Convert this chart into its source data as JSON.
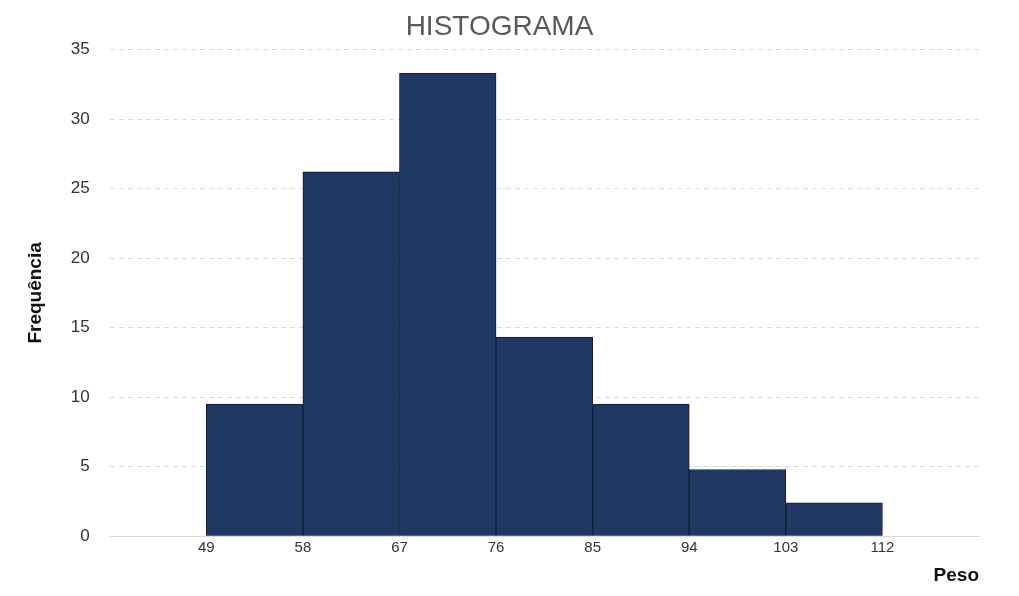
{
  "chart_data": {
    "type": "histogram",
    "title": "HISTOGRAMA",
    "xlabel": "Peso",
    "ylabel": "Frequência",
    "bins": [
      49,
      58,
      67,
      76,
      85,
      94,
      103,
      112
    ],
    "values": [
      9.5,
      26.2,
      33.3,
      14.3,
      9.5,
      4.8,
      2.4
    ],
    "color": "#1f3864",
    "xlim": [
      40,
      121
    ],
    "xticks": [
      49,
      58,
      67,
      76,
      85,
      94,
      103,
      112
    ],
    "ylim": [
      0,
      35
    ],
    "yticks": [
      0,
      5,
      10,
      15,
      20,
      25,
      30,
      35
    ],
    "grid": "y",
    "legend": false
  }
}
